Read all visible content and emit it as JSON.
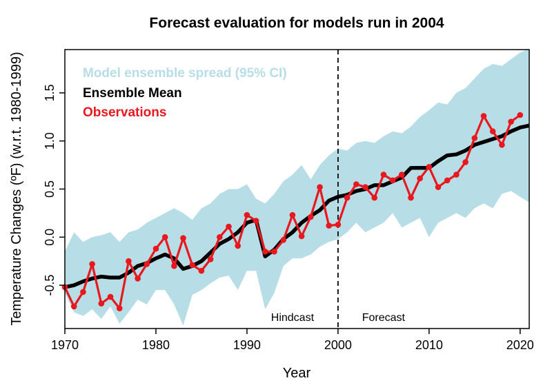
{
  "chart_data": {
    "type": "line",
    "title": "Forecast evaluation for models run in 2004",
    "xlabel": "Year",
    "ylabel": "Temperature Changes (ºF) (w.r.t. 1980-1999)",
    "xlim": [
      1970,
      2021
    ],
    "ylim": [
      -0.95,
      1.95
    ],
    "xticks": [
      "1970",
      "1980",
      "1990",
      "2000",
      "2010",
      "2020"
    ],
    "yticks": [
      "-0.5",
      "0.0",
      "0.5",
      "1.0",
      "1.5"
    ],
    "x": [
      1970,
      1971,
      1972,
      1973,
      1974,
      1975,
      1976,
      1977,
      1978,
      1979,
      1980,
      1981,
      1982,
      1983,
      1984,
      1985,
      1986,
      1987,
      1988,
      1989,
      1990,
      1991,
      1992,
      1993,
      1994,
      1995,
      1996,
      1997,
      1998,
      1999,
      2000,
      2001,
      2002,
      2003,
      2004,
      2005,
      2006,
      2007,
      2008,
      2009,
      2010,
      2011,
      2012,
      2013,
      2014,
      2015,
      2016,
      2017,
      2018,
      2019,
      2020,
      2021
    ],
    "legend_placement": "top-left",
    "grid": false,
    "series": [
      {
        "name": "Model ensemble spread (95% CI)",
        "kind": "band",
        "color": "#b7dde7",
        "lower": [
          -0.58,
          -0.78,
          -0.82,
          -0.75,
          -0.85,
          -0.72,
          -0.9,
          -0.78,
          -0.65,
          -0.7,
          -0.55,
          -0.55,
          -0.7,
          -0.92,
          -0.6,
          -0.55,
          -0.48,
          -0.42,
          -0.4,
          -0.55,
          -0.35,
          -0.35,
          -0.75,
          -0.58,
          -0.3,
          -0.22,
          -0.22,
          -0.18,
          -0.1,
          -0.05,
          -0.02,
          0.05,
          0.15,
          0.05,
          0.1,
          0.15,
          0.25,
          0.1,
          0.15,
          0.2,
          0.0,
          0.15,
          0.2,
          0.25,
          0.2,
          0.3,
          0.35,
          0.3,
          0.45,
          0.48,
          0.42,
          0.36
        ],
        "upper": [
          -0.15,
          0.05,
          -0.05,
          0.0,
          0.02,
          0.05,
          -0.05,
          0.05,
          0.08,
          0.15,
          0.2,
          0.25,
          0.3,
          0.25,
          0.18,
          0.3,
          0.35,
          0.45,
          0.5,
          0.5,
          0.55,
          0.4,
          0.35,
          0.45,
          0.58,
          0.65,
          0.75,
          0.6,
          0.75,
          0.85,
          0.92,
          0.9,
          0.98,
          1.0,
          0.98,
          1.05,
          1.1,
          1.08,
          1.15,
          1.25,
          1.32,
          1.4,
          1.38,
          1.5,
          1.55,
          1.65,
          1.75,
          1.8,
          1.78,
          1.85,
          1.92,
          1.96
        ]
      },
      {
        "name": "Ensemble Mean",
        "kind": "line",
        "color": "#000000",
        "values": [
          -0.52,
          -0.5,
          -0.46,
          -0.43,
          -0.41,
          -0.42,
          -0.42,
          -0.37,
          -0.3,
          -0.27,
          -0.22,
          -0.18,
          -0.22,
          -0.33,
          -0.3,
          -0.25,
          -0.16,
          -0.07,
          -0.02,
          0.05,
          0.15,
          0.18,
          -0.2,
          -0.13,
          -0.02,
          0.05,
          0.15,
          0.22,
          0.28,
          0.38,
          0.42,
          0.44,
          0.48,
          0.5,
          0.54,
          0.54,
          0.58,
          0.62,
          0.72,
          0.72,
          0.72,
          0.79,
          0.85,
          0.86,
          0.9,
          0.96,
          0.99,
          1.02,
          1.05,
          1.1,
          1.14,
          1.16
        ]
      },
      {
        "name": "Observations",
        "kind": "line-markers",
        "color": "#e8181e",
        "x": [
          1970,
          1971,
          1972,
          1973,
          1974,
          1975,
          1976,
          1977,
          1978,
          1979,
          1980,
          1981,
          1982,
          1983,
          1984,
          1985,
          1986,
          1987,
          1988,
          1989,
          1990,
          1991,
          1992,
          1993,
          1994,
          1995,
          1996,
          1997,
          1998,
          1999,
          2000,
          2001,
          2002,
          2003,
          2004,
          2005,
          2006,
          2007,
          2008,
          2009,
          2010,
          2011,
          2012,
          2013,
          2014,
          2015,
          2016,
          2017,
          2018,
          2019,
          2020
        ],
        "values": [
          -0.52,
          -0.72,
          -0.57,
          -0.28,
          -0.69,
          -0.62,
          -0.74,
          -0.25,
          -0.43,
          -0.28,
          -0.12,
          0.0,
          -0.3,
          -0.01,
          -0.29,
          -0.35,
          -0.23,
          0.0,
          0.11,
          -0.09,
          0.23,
          0.17,
          -0.15,
          -0.15,
          -0.03,
          0.23,
          0.01,
          0.21,
          0.52,
          0.12,
          0.13,
          0.41,
          0.55,
          0.52,
          0.41,
          0.65,
          0.59,
          0.65,
          0.41,
          0.61,
          0.73,
          0.52,
          0.59,
          0.65,
          0.78,
          1.03,
          1.26,
          1.1,
          0.96,
          1.2,
          1.27
        ]
      }
    ],
    "annotations": [
      {
        "text": "Hindcast",
        "x": 1995,
        "y": -0.87
      },
      {
        "text": "Forecast",
        "x": 2005,
        "y": -0.87
      }
    ],
    "divider_x": 2000
  }
}
